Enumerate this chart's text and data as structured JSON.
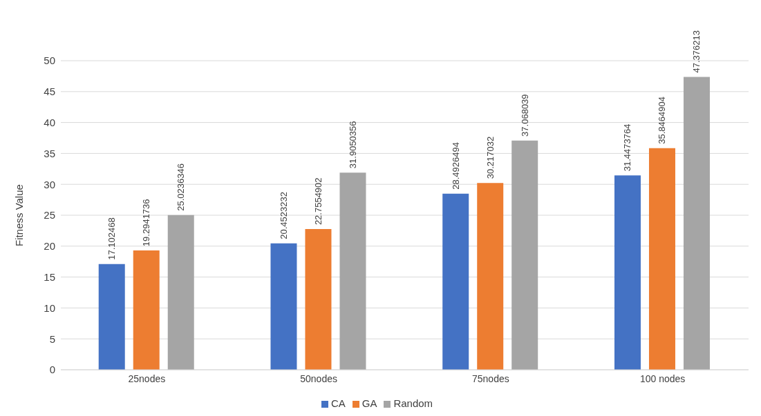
{
  "chart_data": {
    "type": "bar",
    "ylabel": "Fitness Value",
    "categories": [
      "25nodes",
      "50nodes",
      "75nodes",
      "100 nodes"
    ],
    "series": [
      {
        "name": "CA",
        "color": "#4472c4",
        "values": [
          17.102468,
          20.4523232,
          28.4926494,
          31.4473764
        ]
      },
      {
        "name": "GA",
        "color": "#ed7d31",
        "values": [
          19.2941736,
          22.7554902,
          30.217032,
          35.8464904
        ]
      },
      {
        "name": "Random",
        "color": "#a5a5a5",
        "values": [
          25.0236346,
          31.9050356,
          37.068039,
          47.376213
        ]
      }
    ],
    "ylim": [
      0,
      50
    ],
    "yticks": [
      0,
      5,
      10,
      15,
      20,
      25,
      30,
      35,
      40,
      45,
      50
    ],
    "grid": "y",
    "legend": "bottom",
    "data_labels": true
  }
}
